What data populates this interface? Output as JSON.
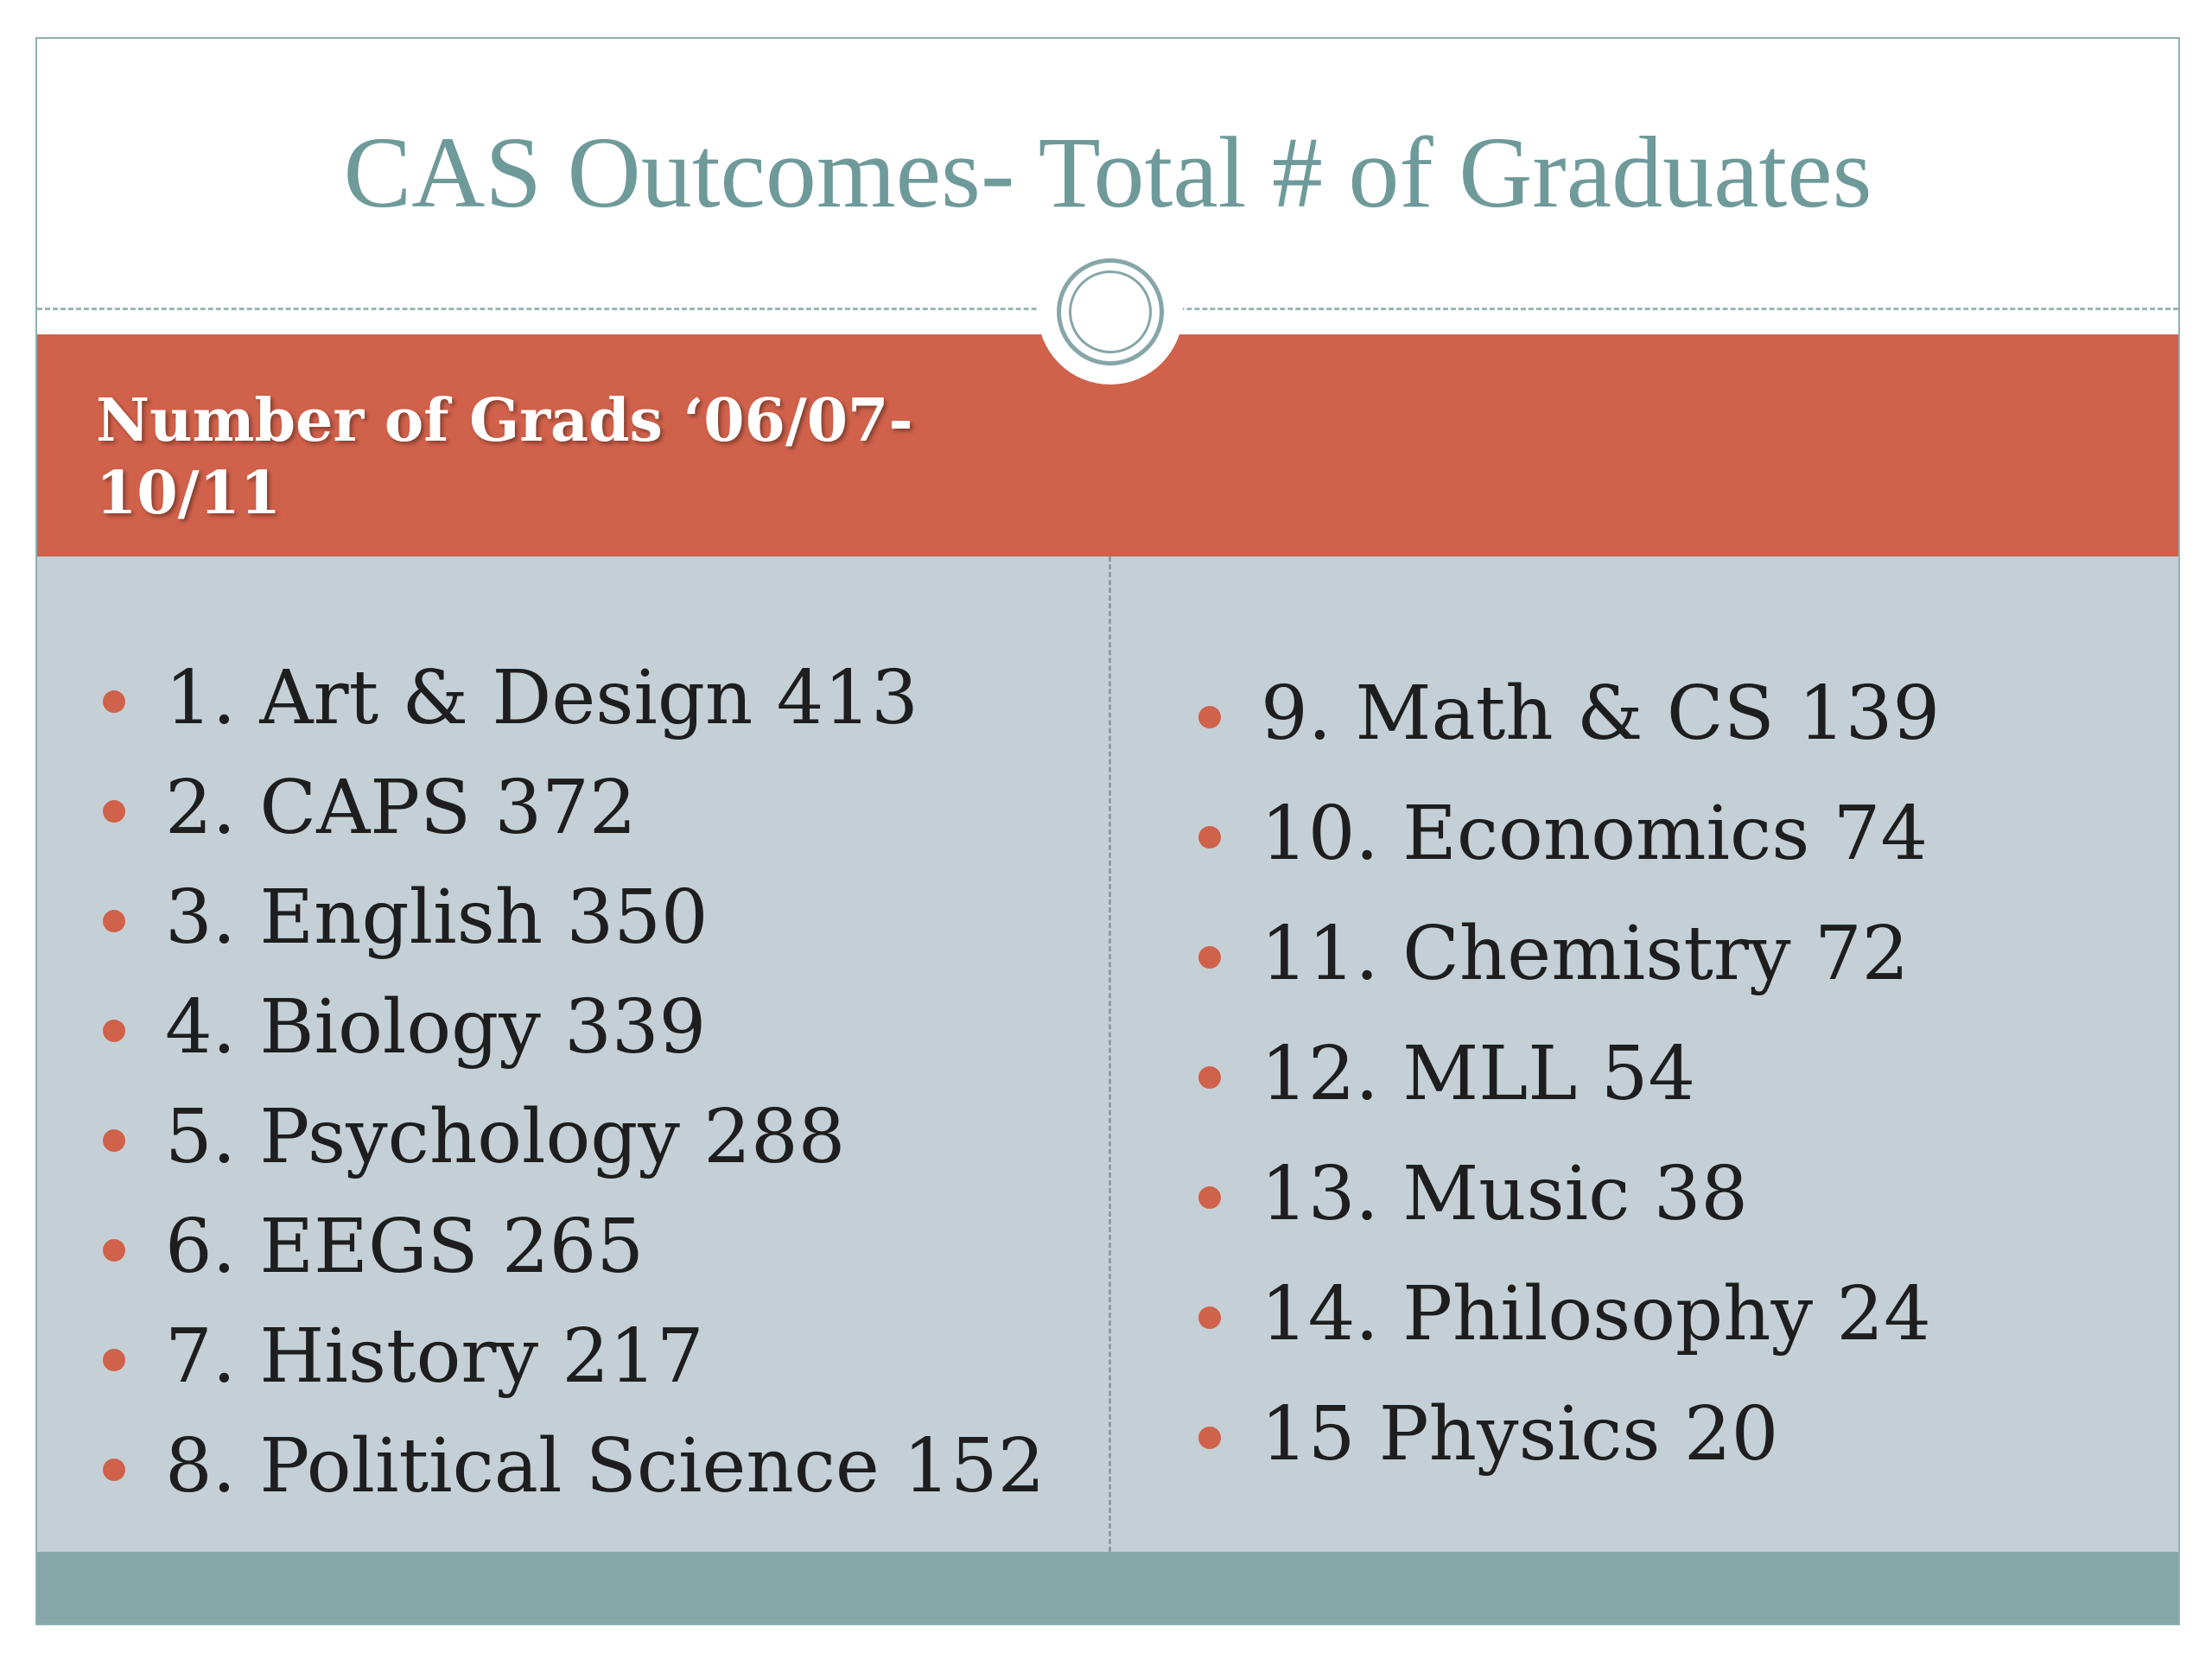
{
  "title": "CAS Outcomes- Total # of Graduates",
  "subtitle": "Number of Grads ‘06/07-10/11",
  "colors": {
    "accent": "#d0614a",
    "title": "#6f9a9a",
    "content_bg": "#c4d0d6",
    "footer": "#86a6a8"
  },
  "left_items": [
    "1. Art & Design 413",
    "2. CAPS 372",
    "3. English 350",
    "4. Biology 339",
    "5. Psychology 288",
    "6. EEGS 265",
    "7. History 217",
    "8. Political Science 152"
  ],
  "right_items": [
    "9. Math & CS 139",
    "10. Economics 74",
    "11. Chemistry 72",
    "12. MLL 54",
    "13. Music 38",
    "14. Philosophy 24",
    "15 Physics 20"
  ]
}
